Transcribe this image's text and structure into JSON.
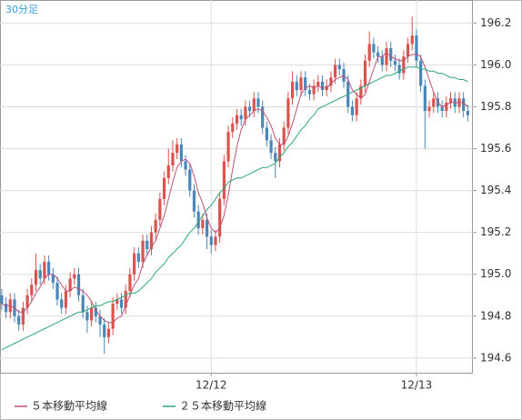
{
  "chart_data": {
    "type": "candlestick",
    "title": "30分足",
    "ylim": [
      194.53,
      196.31
    ],
    "yticks": [
      194.6,
      194.8,
      {
        "value": 195,
        "label": "195.0"
      },
      195.2,
      195.4,
      195.6,
      195.8,
      {
        "value": 196,
        "label": "196.0"
      },
      196.2
    ],
    "xlim": [
      -0.4,
      110.2
    ],
    "xticks": [
      {
        "value": 49,
        "label": "12/12"
      },
      {
        "value": 97,
        "label": "12/13"
      }
    ],
    "grid": true,
    "up_color": "#d9534f",
    "down_color": "#4a86b8",
    "ohlc": [
      [
        194.9,
        194.93,
        194.83,
        194.86
      ],
      [
        194.86,
        194.89,
        194.79,
        194.82
      ],
      [
        194.82,
        194.91,
        194.79,
        194.88
      ],
      [
        194.88,
        194.91,
        194.77,
        194.8
      ],
      [
        194.8,
        194.83,
        194.73,
        194.76
      ],
      [
        194.76,
        194.87,
        194.73,
        194.84
      ],
      [
        194.84,
        194.93,
        194.81,
        194.9
      ],
      [
        194.9,
        194.98,
        194.87,
        194.95
      ],
      [
        194.95,
        195.1,
        194.92,
        195.02
      ],
      [
        195.02,
        195.05,
        194.95,
        194.98
      ],
      [
        194.98,
        195.09,
        194.95,
        195.06
      ],
      [
        195.06,
        195.09,
        194.97,
        195.0
      ],
      [
        195.0,
        195.03,
        194.93,
        194.96
      ],
      [
        194.96,
        194.99,
        194.85,
        194.88
      ],
      [
        194.88,
        194.91,
        194.81,
        194.84
      ],
      [
        194.84,
        194.95,
        194.81,
        194.92
      ],
      [
        194.92,
        195.01,
        194.89,
        194.98
      ],
      [
        194.98,
        195.03,
        194.95,
        195.0
      ],
      [
        195.0,
        195.03,
        194.87,
        194.9
      ],
      [
        194.9,
        194.93,
        194.79,
        194.82
      ],
      [
        194.82,
        194.85,
        194.72,
        194.78
      ],
      [
        194.78,
        194.87,
        194.75,
        194.84
      ],
      [
        194.84,
        194.87,
        194.77,
        194.8
      ],
      [
        194.8,
        194.83,
        194.7,
        194.76
      ],
      [
        194.76,
        194.79,
        194.62,
        194.7
      ],
      [
        194.7,
        194.77,
        194.67,
        194.74
      ],
      [
        194.74,
        194.89,
        194.71,
        194.86
      ],
      [
        194.86,
        194.91,
        194.83,
        194.88
      ],
      [
        194.88,
        194.91,
        194.81,
        194.84
      ],
      [
        194.84,
        194.95,
        194.81,
        194.92
      ],
      [
        194.92,
        195.03,
        194.89,
        195.0
      ],
      [
        195.0,
        195.13,
        194.97,
        195.1
      ],
      [
        195.1,
        195.13,
        195.03,
        195.06
      ],
      [
        195.06,
        195.19,
        195.03,
        195.16
      ],
      [
        195.16,
        195.19,
        195.09,
        195.12
      ],
      [
        195.12,
        195.23,
        195.09,
        195.2
      ],
      [
        195.2,
        195.29,
        195.17,
        195.26
      ],
      [
        195.26,
        195.39,
        195.23,
        195.36
      ],
      [
        195.36,
        195.49,
        195.33,
        195.46
      ],
      [
        195.46,
        195.6,
        195.43,
        195.52
      ],
      [
        195.52,
        195.64,
        195.49,
        195.58
      ],
      [
        195.58,
        195.65,
        195.55,
        195.62
      ],
      [
        195.62,
        195.65,
        195.51,
        195.54
      ],
      [
        195.54,
        195.57,
        195.47,
        195.5
      ],
      [
        195.5,
        195.53,
        195.37,
        195.4
      ],
      [
        195.4,
        195.43,
        195.27,
        195.3
      ],
      [
        195.3,
        195.33,
        195.19,
        195.22
      ],
      [
        195.22,
        195.29,
        195.19,
        195.26
      ],
      [
        195.26,
        195.29,
        195.12,
        195.18
      ],
      [
        195.18,
        195.21,
        195.1,
        195.14
      ],
      [
        195.14,
        195.21,
        195.11,
        195.18
      ],
      [
        195.18,
        195.39,
        195.15,
        195.36
      ],
      [
        195.36,
        195.57,
        195.33,
        195.54
      ],
      [
        195.54,
        195.71,
        195.51,
        195.68
      ],
      [
        195.68,
        195.75,
        195.65,
        195.72
      ],
      [
        195.72,
        195.79,
        195.69,
        195.76
      ],
      [
        195.76,
        195.79,
        195.71,
        195.74
      ],
      [
        195.74,
        195.83,
        195.71,
        195.8
      ],
      [
        195.8,
        195.83,
        195.75,
        195.78
      ],
      [
        195.78,
        195.87,
        195.75,
        195.84
      ],
      [
        195.84,
        195.87,
        195.77,
        195.8
      ],
      [
        195.8,
        195.83,
        195.67,
        195.7
      ],
      [
        195.7,
        195.73,
        195.61,
        195.64
      ],
      [
        195.64,
        195.67,
        195.55,
        195.58
      ],
      [
        195.58,
        195.61,
        195.46,
        195.54
      ],
      [
        195.54,
        195.65,
        195.51,
        195.62
      ],
      [
        195.62,
        195.73,
        195.59,
        195.7
      ],
      [
        195.7,
        195.87,
        195.67,
        195.84
      ],
      [
        195.84,
        195.97,
        195.81,
        195.92
      ],
      [
        195.92,
        195.95,
        195.85,
        195.88
      ],
      [
        195.88,
        195.97,
        195.85,
        195.94
      ],
      [
        195.94,
        195.97,
        195.85,
        195.88
      ],
      [
        195.88,
        195.91,
        195.83,
        195.86
      ],
      [
        195.86,
        195.93,
        195.83,
        195.9
      ],
      [
        195.9,
        195.95,
        195.87,
        195.92
      ],
      [
        195.92,
        195.95,
        195.85,
        195.88
      ],
      [
        195.88,
        195.93,
        195.85,
        195.9
      ],
      [
        195.9,
        195.97,
        195.87,
        195.94
      ],
      [
        195.94,
        196.03,
        195.91,
        196.0
      ],
      [
        196.0,
        196.03,
        195.95,
        195.98
      ],
      [
        195.98,
        196.01,
        195.89,
        195.92
      ],
      [
        195.92,
        195.95,
        195.77,
        195.8
      ],
      [
        195.8,
        195.83,
        195.73,
        195.76
      ],
      [
        195.76,
        195.87,
        195.73,
        195.84
      ],
      [
        195.84,
        195.93,
        195.81,
        195.9
      ],
      [
        195.9,
        196.05,
        195.87,
        196.02
      ],
      [
        196.02,
        196.16,
        195.99,
        196.1
      ],
      [
        196.1,
        196.13,
        196.03,
        196.06
      ],
      [
        196.06,
        196.09,
        196.01,
        196.04
      ],
      [
        196.04,
        196.07,
        195.97,
        196.0
      ],
      [
        196.0,
        196.11,
        195.97,
        196.08
      ],
      [
        196.08,
        196.11,
        195.99,
        196.02
      ],
      [
        196.02,
        196.05,
        195.97,
        196.0
      ],
      [
        196.0,
        196.03,
        195.93,
        195.96
      ],
      [
        195.96,
        196.07,
        195.93,
        196.04
      ],
      [
        196.04,
        196.13,
        196.01,
        196.1
      ],
      [
        196.1,
        196.23,
        196.07,
        196.14
      ],
      [
        196.14,
        196.17,
        195.99,
        196.02
      ],
      [
        196.02,
        196.05,
        195.87,
        195.9
      ],
      [
        195.9,
        195.93,
        195.6,
        195.78
      ],
      [
        195.78,
        195.83,
        195.75,
        195.8
      ],
      [
        195.8,
        195.87,
        195.77,
        195.84
      ],
      [
        195.84,
        195.87,
        195.77,
        195.8
      ],
      [
        195.8,
        195.83,
        195.75,
        195.78
      ],
      [
        195.78,
        195.85,
        195.75,
        195.82
      ],
      [
        195.82,
        195.87,
        195.79,
        195.84
      ],
      [
        195.84,
        195.87,
        195.77,
        195.8
      ],
      [
        195.8,
        195.87,
        195.77,
        195.84
      ],
      [
        195.84,
        195.87,
        195.75,
        195.78
      ],
      [
        195.78,
        195.81,
        195.73,
        195.76
      ]
    ],
    "series": [
      {
        "name": "５本移動平均線",
        "color": "#c0507a",
        "values": [
          194.86,
          194.85,
          194.85,
          194.84,
          194.82,
          194.82,
          194.84,
          194.87,
          194.91,
          194.94,
          194.98,
          195.0,
          195.0,
          194.98,
          194.95,
          194.92,
          194.92,
          194.94,
          194.93,
          194.92,
          194.9,
          194.87,
          194.83,
          194.8,
          194.78,
          194.77,
          194.77,
          194.79,
          194.8,
          194.85,
          194.9,
          194.95,
          194.98,
          195.05,
          195.09,
          195.13,
          195.16,
          195.22,
          195.28,
          195.36,
          195.44,
          195.51,
          195.54,
          195.55,
          195.53,
          195.47,
          195.39,
          195.34,
          195.27,
          195.22,
          195.2,
          195.22,
          195.28,
          195.38,
          195.5,
          195.61,
          195.69,
          195.74,
          195.76,
          195.78,
          195.79,
          195.78,
          195.75,
          195.71,
          195.65,
          195.62,
          195.62,
          195.66,
          195.72,
          195.79,
          195.86,
          195.89,
          195.9,
          195.89,
          195.9,
          195.89,
          195.89,
          195.91,
          195.93,
          195.94,
          195.95,
          195.93,
          195.88,
          195.86,
          195.84,
          195.86,
          195.92,
          195.98,
          196.04,
          196.04,
          196.06,
          196.04,
          196.03,
          196.02,
          196.02,
          196.04,
          196.05,
          196.05,
          196.04,
          195.99,
          195.93,
          195.87,
          195.82,
          195.8,
          195.81,
          195.82,
          195.82,
          195.82,
          195.82,
          195.8
        ]
      },
      {
        "name": "２５本移動平均線",
        "color": "#2aa876",
        "values": [
          194.64,
          194.65,
          194.66,
          194.67,
          194.68,
          194.69,
          194.7,
          194.71,
          194.72,
          194.73,
          194.74,
          194.75,
          194.76,
          194.77,
          194.78,
          194.79,
          194.8,
          194.81,
          194.82,
          194.82,
          194.83,
          194.84,
          194.85,
          194.85,
          194.86,
          194.87,
          194.87,
          194.88,
          194.89,
          194.9,
          194.91,
          194.91,
          194.92,
          194.94,
          194.96,
          194.98,
          195.01,
          195.03,
          195.05,
          195.08,
          195.1,
          195.12,
          195.14,
          195.17,
          195.2,
          195.22,
          195.25,
          195.28,
          195.31,
          195.33,
          195.36,
          195.39,
          195.41,
          195.44,
          195.45,
          195.46,
          195.46,
          195.47,
          195.48,
          195.49,
          195.5,
          195.51,
          195.51,
          195.52,
          195.53,
          195.56,
          195.58,
          195.61,
          195.63,
          195.66,
          195.69,
          195.71,
          195.74,
          195.76,
          195.79,
          195.8,
          195.81,
          195.82,
          195.83,
          195.84,
          195.85,
          195.86,
          195.87,
          195.88,
          195.89,
          195.9,
          195.91,
          195.92,
          195.93,
          195.94,
          195.95,
          195.95,
          195.96,
          195.97,
          195.98,
          195.99,
          195.99,
          195.99,
          195.98,
          195.98,
          195.97,
          195.97,
          195.96,
          195.96,
          195.95,
          195.94,
          195.94,
          195.93,
          195.93,
          195.92
        ]
      }
    ]
  }
}
